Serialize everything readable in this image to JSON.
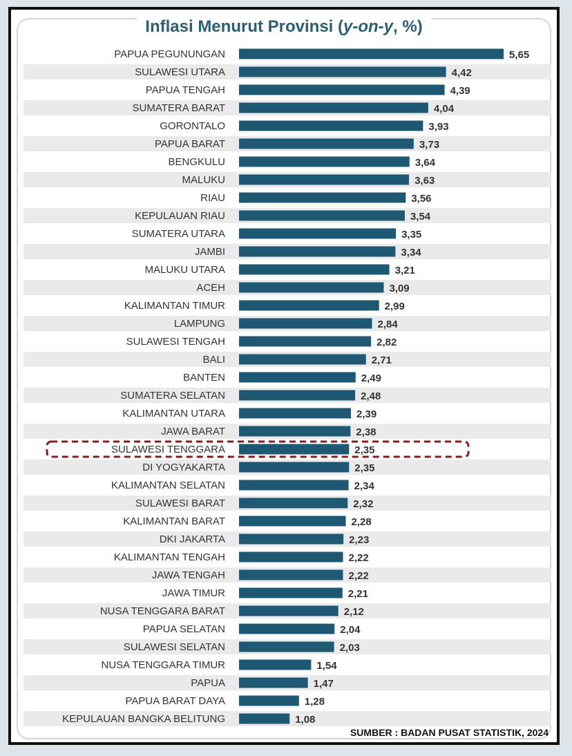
{
  "title": {
    "main": "Inflasi Menurut Provinsi ",
    "italic": "y-on-y",
    "tail": ", %)",
    "open": "("
  },
  "source": "SUMBER : BADAN PUSAT STATISTIK, 2024",
  "colors": {
    "bar": "#1e5873",
    "stripe": "#eaeaea",
    "highlight": "#8b1a1a",
    "label": "#333333",
    "title": "#2b5f72"
  },
  "highlight_category": "SULAWESI TENGGARA",
  "chart_data": {
    "type": "bar",
    "orientation": "horizontal",
    "title": "Inflasi Menurut Provinsi (y-on-y, %)",
    "xlim": [
      0,
      5.65
    ],
    "grid": false,
    "categories": [
      "PAPUA PEGUNUNGAN",
      "SULAWESI UTARA",
      "PAPUA TENGAH",
      "SUMATERA BARAT",
      "GORONTALO",
      "PAPUA BARAT",
      "BENGKULU",
      "MALUKU",
      "RIAU",
      "KEPULAUAN RIAU",
      "SUMATERA UTARA",
      "JAMBI",
      "MALUKU UTARA",
      "ACEH",
      "KALIMANTAN TIMUR",
      "LAMPUNG",
      "SULAWESI TENGAH",
      "BALI",
      "BANTEN",
      "SUMATERA SELATAN",
      "KALIMANTAN UTARA",
      "JAWA BARAT",
      "SULAWESI TENGGARA",
      "DI YOGYAKARTA",
      "KALIMANTAN SELATAN",
      "SULAWESI BARAT",
      "KALIMANTAN BARAT",
      "DKI JAKARTA",
      "KALIMANTAN TENGAH",
      "JAWA TENGAH",
      "JAWA TIMUR",
      "NUSA TENGGARA BARAT",
      "PAPUA SELATAN",
      "SULAWESI SELATAN",
      "NUSA TENGGARA TIMUR",
      "PAPUA",
      "PAPUA BARAT DAYA",
      "KEPULAUAN BANGKA BELITUNG"
    ],
    "values": [
      5.65,
      4.42,
      4.39,
      4.04,
      3.93,
      3.73,
      3.64,
      3.63,
      3.56,
      3.54,
      3.35,
      3.34,
      3.21,
      3.09,
      2.99,
      2.84,
      2.82,
      2.71,
      2.49,
      2.48,
      2.39,
      2.38,
      2.35,
      2.35,
      2.34,
      2.32,
      2.28,
      2.23,
      2.22,
      2.22,
      2.21,
      2.12,
      2.04,
      2.03,
      1.54,
      1.47,
      1.28,
      1.08
    ],
    "value_labels": [
      "5,65",
      "4,42",
      "4,39",
      "4,04",
      "3,93",
      "3,73",
      "3,64",
      "3,63",
      "3,56",
      "3,54",
      "3,35",
      "3,34",
      "3,21",
      "3,09",
      "2,99",
      "2,84",
      "2,82",
      "2,71",
      "2,49",
      "2,48",
      "2,39",
      "2,38",
      "2,35",
      "2,35",
      "2,34",
      "2,32",
      "2,28",
      "2,23",
      "2,22",
      "2,22",
      "2,21",
      "2,12",
      "2,04",
      "2,03",
      "1,54",
      "1,47",
      "1,28",
      "1,08"
    ]
  }
}
